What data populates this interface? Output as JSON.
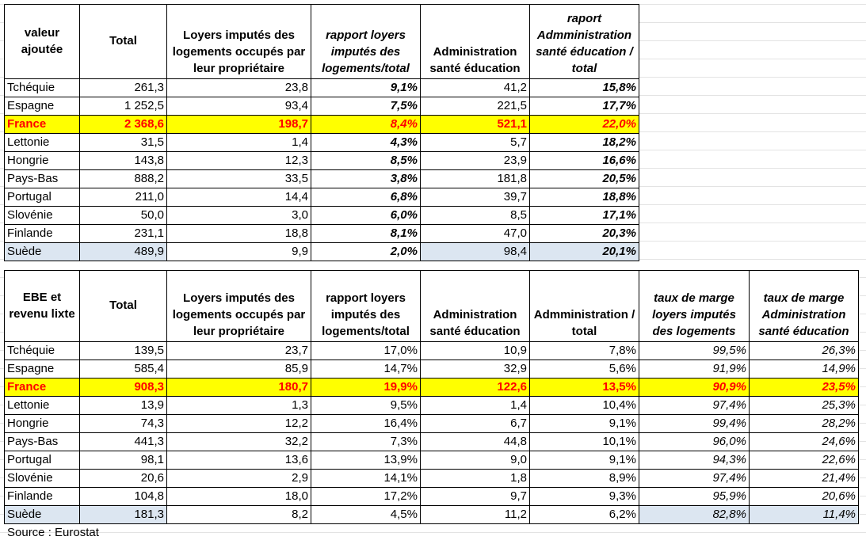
{
  "table1": {
    "header": [
      "valeur ajoutée",
      "Total",
      "Loyers imputés des logements occupés par leur propriétaire",
      "rapport loyers imputés des logements/total",
      "Administration santé éducation",
      "raport Admministration santé éducation / total"
    ],
    "rows": [
      [
        "Tchéquie",
        "261,3",
        "23,8",
        "9,1%",
        "41,2",
        "15,8%"
      ],
      [
        "Espagne",
        "1 252,5",
        "93,4",
        "7,5%",
        "221,5",
        "17,7%"
      ],
      [
        "France",
        "2 368,6",
        "198,7",
        "8,4%",
        "521,1",
        "22,0%"
      ],
      [
        "Lettonie",
        "31,5",
        "1,4",
        "4,3%",
        "5,7",
        "18,2%"
      ],
      [
        "Hongrie",
        "143,8",
        "12,3",
        "8,5%",
        "23,9",
        "16,6%"
      ],
      [
        "Pays-Bas",
        "888,2",
        "33,5",
        "3,8%",
        "181,8",
        "20,5%"
      ],
      [
        "Portugal",
        "211,0",
        "14,4",
        "6,8%",
        "39,7",
        "18,8%"
      ],
      [
        "Slovénie",
        "50,0",
        "3,0",
        "6,0%",
        "8,5",
        "17,1%"
      ],
      [
        "Finlande",
        "231,1",
        "18,8",
        "8,1%",
        "47,0",
        "20,3%"
      ],
      [
        "Suède",
        "489,9",
        "9,9",
        "2,0%",
        "98,4",
        "20,1%"
      ]
    ]
  },
  "table2": {
    "header": [
      "EBE et revenu lixte",
      "Total",
      "Loyers imputés des logements occupés par leur propriétaire",
      "rapport loyers imputés des logements/total",
      "Administration santé éducation",
      "Admministration / total",
      "taux de marge loyers imputés des logements",
      "taux de marge Administration santé éducation"
    ],
    "rows": [
      [
        "Tchéquie",
        "139,5",
        "23,7",
        "17,0%",
        "10,9",
        "7,8%",
        "99,5%",
        "26,3%"
      ],
      [
        "Espagne",
        "585,4",
        "85,9",
        "14,7%",
        "32,9",
        "5,6%",
        "91,9%",
        "14,9%"
      ],
      [
        "France",
        "908,3",
        "180,7",
        "19,9%",
        "122,6",
        "13,5%",
        "90,9%",
        "23,5%"
      ],
      [
        "Lettonie",
        "13,9",
        "1,3",
        "9,5%",
        "1,4",
        "10,4%",
        "97,4%",
        "25,3%"
      ],
      [
        "Hongrie",
        "74,3",
        "12,2",
        "16,4%",
        "6,7",
        "9,1%",
        "99,4%",
        "28,2%"
      ],
      [
        "Pays-Bas",
        "441,3",
        "32,2",
        "7,3%",
        "44,8",
        "10,1%",
        "96,0%",
        "24,6%"
      ],
      [
        "Portugal",
        "98,1",
        "13,6",
        "13,9%",
        "9,0",
        "9,1%",
        "94,3%",
        "22,6%"
      ],
      [
        "Slovénie",
        "20,6",
        "2,9",
        "14,1%",
        "1,8",
        "8,9%",
        "97,4%",
        "21,4%"
      ],
      [
        "Finlande",
        "104,8",
        "18,0",
        "17,2%",
        "9,7",
        "9,3%",
        "95,9%",
        "20,6%"
      ],
      [
        "Suède",
        "181,3",
        "8,2",
        "4,5%",
        "11,2",
        "6,2%",
        "82,8%",
        "11,4%"
      ]
    ]
  },
  "source": "Source : Eurostat"
}
